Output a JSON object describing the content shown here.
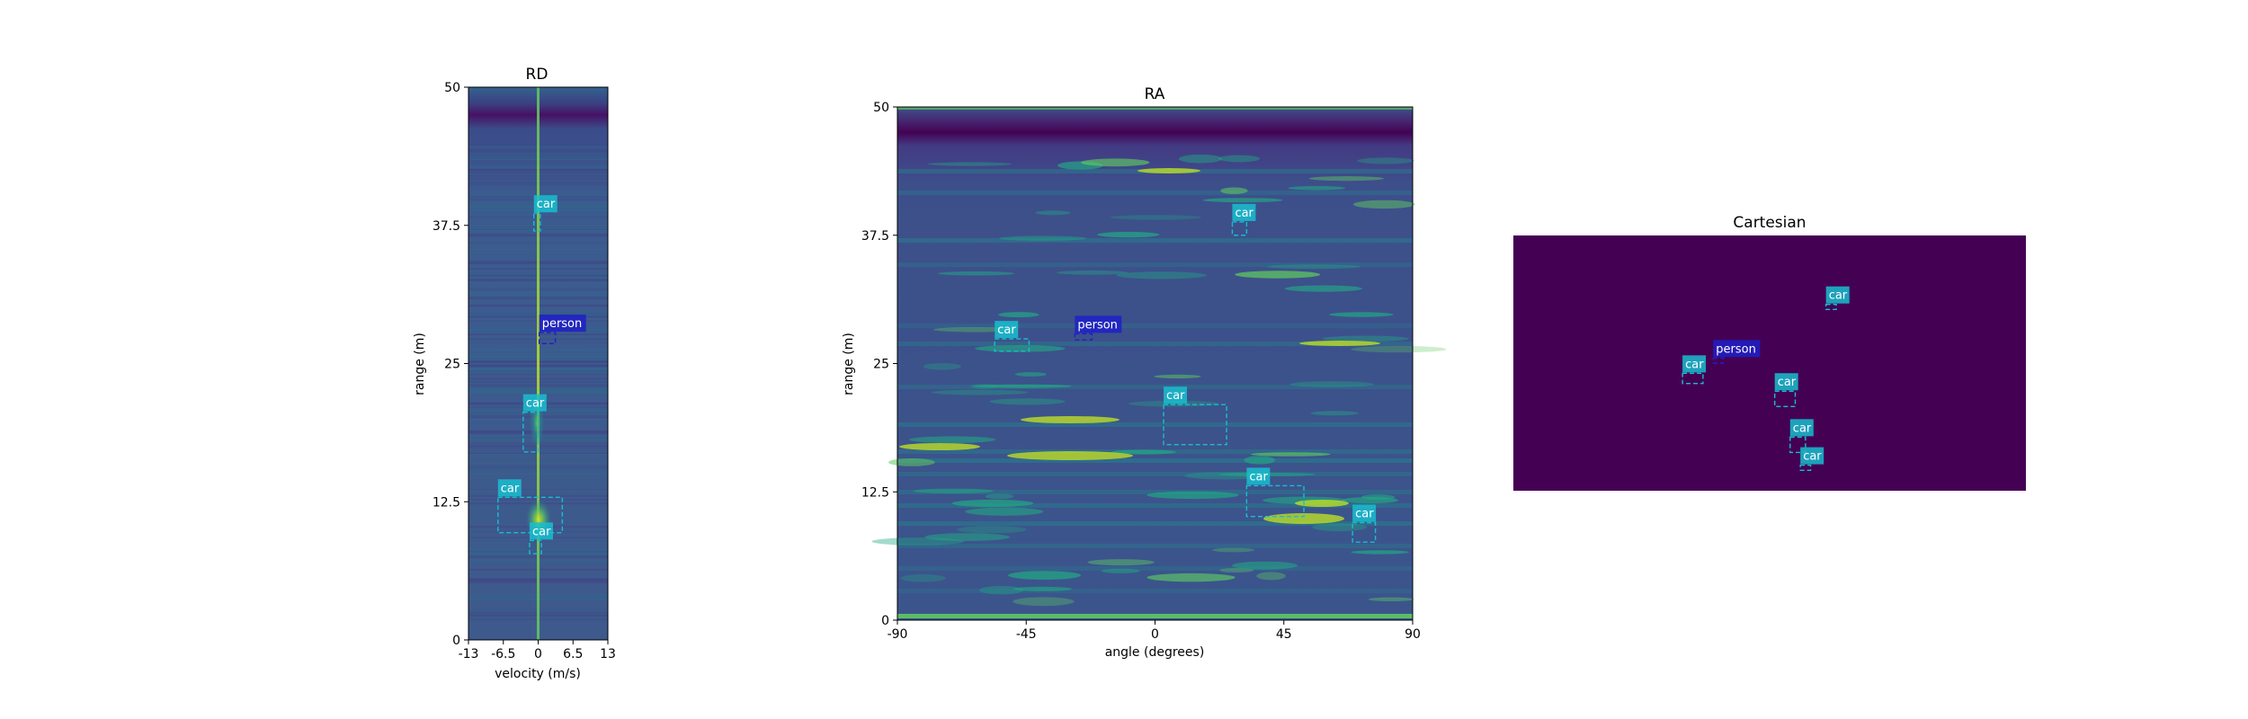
{
  "colors": {
    "car": "#17becf",
    "person": "#1f1fc8",
    "cartesian_bg": "#440154",
    "map_low": "#3b528b",
    "map_mid": "#21918c",
    "map_high": "#fde725"
  },
  "chart_data": [
    {
      "id": "rd",
      "type": "heatmap",
      "title": "RD",
      "xlabel": "velocity (m/s)",
      "ylabel": "range (m)",
      "xlim": [
        -13,
        13
      ],
      "ylim": [
        0,
        50
      ],
      "xticks": [
        -13,
        -6.5,
        0,
        6.5,
        13
      ],
      "xtick_labels": [
        "-13",
        "-6.5",
        "0",
        "6.5",
        "13"
      ],
      "yticks": [
        0,
        12.5,
        25,
        37.5,
        50
      ],
      "ytick_labels": [
        "0",
        "12.5",
        "25",
        "37.5",
        "50"
      ],
      "colormap": "viridis",
      "detections": [
        {
          "label": "car",
          "x": [
            -0.8,
            0.4
          ],
          "y": [
            37.0,
            38.6
          ]
        },
        {
          "label": "person",
          "x": [
            0.2,
            3.2
          ],
          "y": [
            26.8,
            27.8
          ]
        },
        {
          "label": "car",
          "x": [
            -2.8,
            0.0
          ],
          "y": [
            17.0,
            20.6
          ]
        },
        {
          "label": "car",
          "x": [
            -7.5,
            4.5
          ],
          "y": [
            9.7,
            12.9
          ]
        },
        {
          "label": "car",
          "x": [
            -1.6,
            0.6
          ],
          "y": [
            7.8,
            9.0
          ]
        }
      ]
    },
    {
      "id": "ra",
      "type": "heatmap",
      "title": "RA",
      "xlabel": "angle (degrees)",
      "ylabel": "range (m)",
      "xlim": [
        -90,
        90
      ],
      "ylim": [
        0,
        50
      ],
      "xticks": [
        -90,
        -45,
        0,
        45,
        90
      ],
      "xtick_labels": [
        "-90",
        "-45",
        "0",
        "45",
        "90"
      ],
      "yticks": [
        0,
        12.5,
        25,
        37.5,
        50
      ],
      "ytick_labels": [
        "0",
        "12.5",
        "25",
        "37.5",
        "50"
      ],
      "colormap": "viridis",
      "detections": [
        {
          "label": "car",
          "x": [
            27,
            32
          ],
          "y": [
            37.5,
            38.8
          ]
        },
        {
          "label": "person",
          "x": [
            -28,
            -22
          ],
          "y": [
            27.3,
            27.9
          ]
        },
        {
          "label": "car",
          "x": [
            -56,
            -44
          ],
          "y": [
            26.2,
            27.4
          ]
        },
        {
          "label": "car",
          "x": [
            3,
            25
          ],
          "y": [
            17.1,
            21.0
          ]
        },
        {
          "label": "car",
          "x": [
            32,
            52
          ],
          "y": [
            10.1,
            13.1
          ]
        },
        {
          "label": "car",
          "x": [
            69,
            77
          ],
          "y": [
            7.6,
            9.5
          ]
        }
      ]
    },
    {
      "id": "cartesian",
      "type": "heatmap",
      "title": "Cartesian",
      "xlabel": "",
      "ylabel": "",
      "background": "#440154",
      "detections": [
        {
          "label": "car",
          "x": [
            0.61,
            0.63
          ],
          "y": [
            0.71,
            0.73
          ]
        },
        {
          "label": "person",
          "x": [
            0.39,
            0.41
          ],
          "y": [
            0.5,
            0.52
          ]
        },
        {
          "label": "car",
          "x": [
            0.33,
            0.37
          ],
          "y": [
            0.42,
            0.46
          ]
        },
        {
          "label": "car",
          "x": [
            0.51,
            0.55
          ],
          "y": [
            0.33,
            0.39
          ]
        },
        {
          "label": "car",
          "x": [
            0.54,
            0.57
          ],
          "y": [
            0.15,
            0.21
          ]
        },
        {
          "label": "car",
          "x": [
            0.56,
            0.58
          ],
          "y": [
            0.08,
            0.1
          ]
        }
      ]
    }
  ]
}
